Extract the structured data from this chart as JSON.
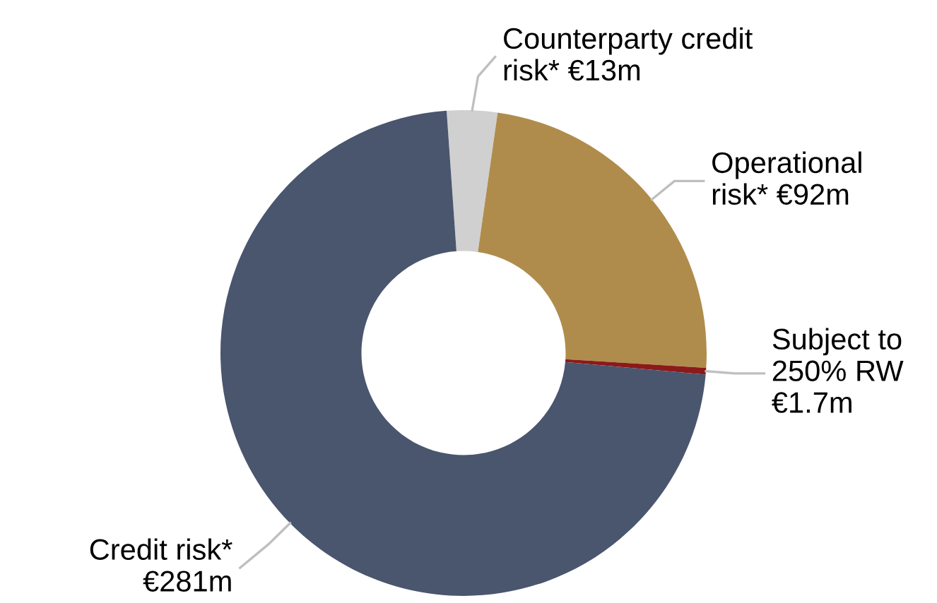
{
  "chart_data": {
    "type": "donut",
    "categories": [
      "Counterparty credit\nrisk* €13m",
      "Operational\nrisk* €92m",
      "Subject to\n250% RW\n€1.7m",
      "Credit risk*\n€281m"
    ],
    "values": [
      13,
      92,
      1.7,
      281
    ],
    "colors": [
      "#d0d0d0",
      "#b08c4c",
      "#8b1a1a",
      "#4a556e"
    ],
    "legend": false
  }
}
